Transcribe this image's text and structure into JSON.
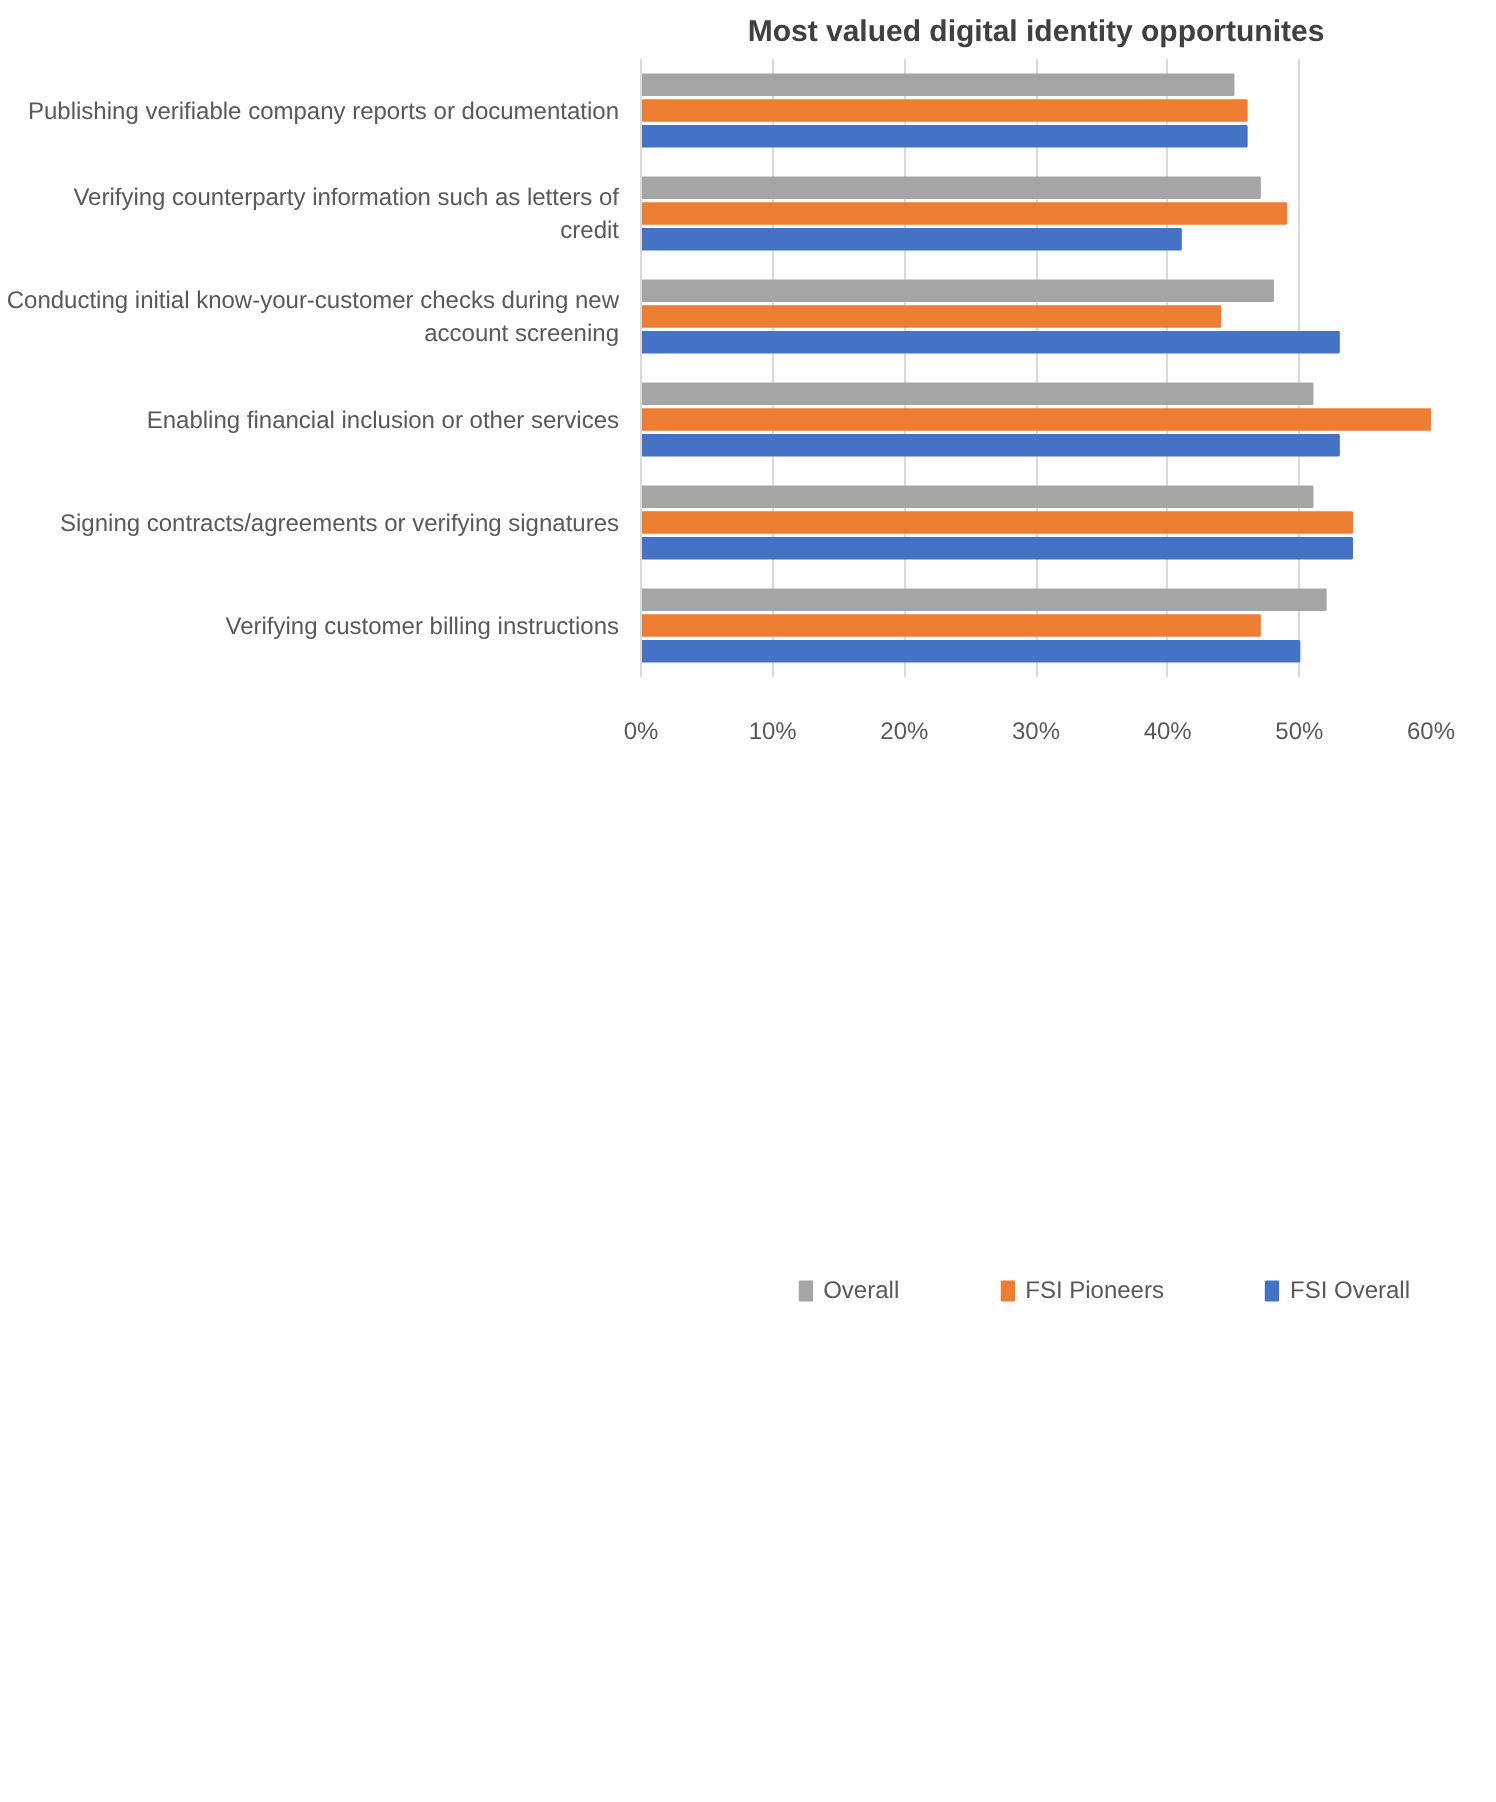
{
  "chart_data": {
    "type": "bar",
    "orientation": "horizontal",
    "title": "Most valued digital identity opportunites",
    "categories": [
      "Publishing verifiable company reports or documentation",
      "Verifying counterparty information such as letters of credit",
      "Conducting initial know-your-customer checks during new account screening",
      "Enabling financial inclusion or other services",
      "Signing contracts/agreements or verifying signatures",
      "Verifying customer billing instructions"
    ],
    "series": [
      {
        "name": "Overall",
        "color": "#a5a5a5",
        "values": [
          45,
          47,
          48,
          51,
          51,
          52
        ]
      },
      {
        "name": "FSI Pioneers",
        "color": "#ed7d31",
        "values": [
          46,
          49,
          44,
          60,
          54,
          47
        ]
      },
      {
        "name": "FSI Overall",
        "color": "#4472c4",
        "values": [
          46,
          41,
          53,
          53,
          54,
          50
        ]
      }
    ],
    "xlim": [
      0,
      60
    ],
    "xticks": [
      {
        "value": 0,
        "label": "0%"
      },
      {
        "value": 10,
        "label": "10%"
      },
      {
        "value": 20,
        "label": "20%"
      },
      {
        "value": 30,
        "label": "30%"
      },
      {
        "value": 40,
        "label": "40%"
      },
      {
        "value": 50,
        "label": "50%"
      },
      {
        "value": 60,
        "label": "60%"
      }
    ],
    "grid": "x",
    "legend": "bottom"
  }
}
